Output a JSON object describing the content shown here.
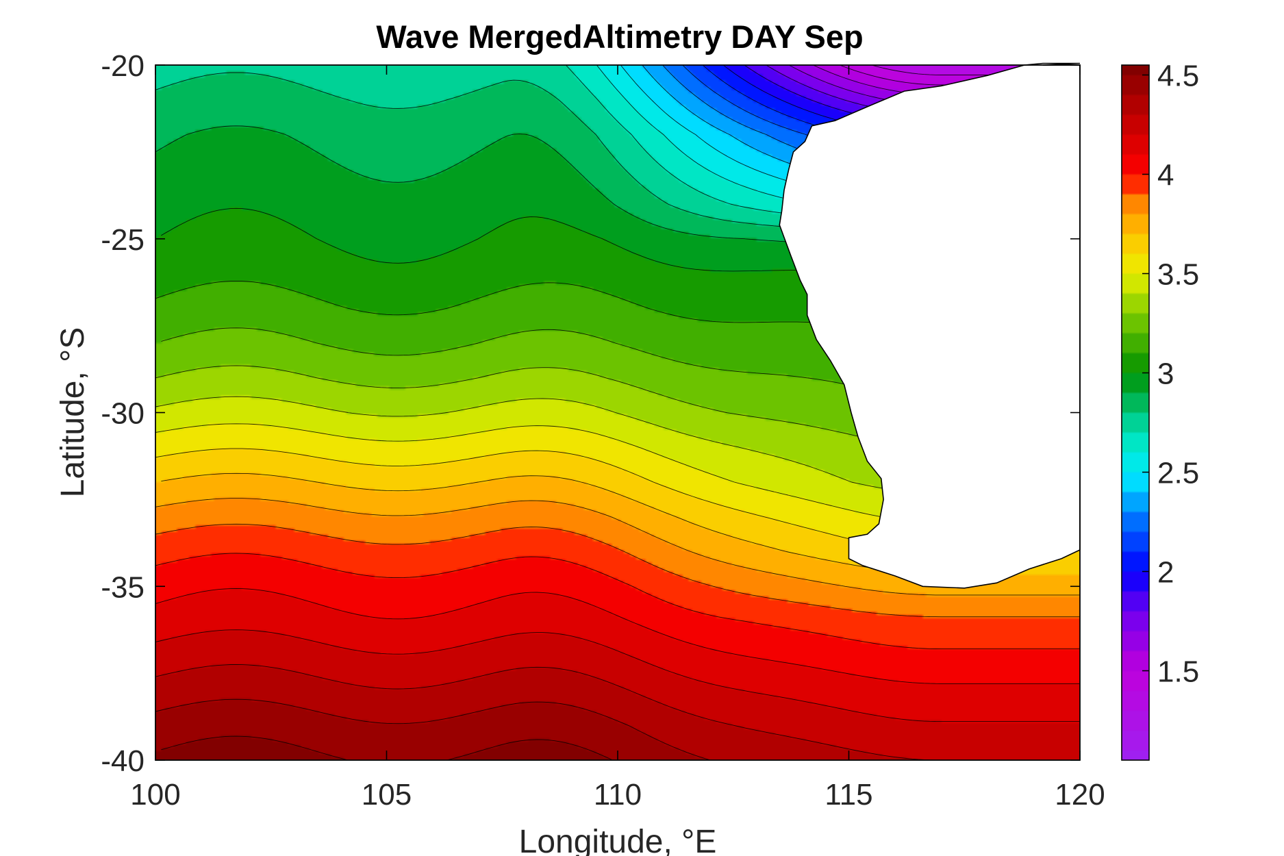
{
  "chart_data": {
    "type": "heatmap",
    "subtype": "filled-contour-map",
    "title": "Wave MergedAltimetry DAY Sep",
    "xlabel": "Longitude, °E",
    "ylabel": "Latitude, °S",
    "xlim": [
      100,
      120
    ],
    "ylim": [
      -40,
      -20
    ],
    "xticks": [
      100,
      105,
      110,
      115,
      120
    ],
    "yticks": [
      -20,
      -25,
      -30,
      -35,
      -40
    ],
    "colorbar": {
      "colormap": "jet-like (purple to dark red)",
      "clim": [
        1.05,
        4.55
      ],
      "ticks": [
        1.5,
        2,
        2.5,
        3,
        3.5,
        4,
        4.5
      ]
    },
    "contour_step": 0.1,
    "offshore_profile": {
      "latitude": [
        -20,
        -21,
        -22,
        -23,
        -24,
        -25,
        -26,
        -27,
        -28,
        -29,
        -30,
        -31,
        -32,
        -33,
        -34,
        -35,
        -36,
        -37,
        -38,
        -39,
        -40
      ],
      "value_at_lon_100": [
        2.75,
        2.82,
        2.88,
        2.92,
        2.96,
        3.0,
        3.05,
        3.12,
        3.2,
        3.3,
        3.42,
        3.56,
        3.7,
        3.84,
        3.96,
        4.06,
        4.14,
        4.24,
        4.34,
        4.44,
        4.52
      ]
    },
    "land_mask": "Western Australia coastline (land shown in white)"
  },
  "colors": {
    "land": "#ffffff",
    "contour_line": "#000000",
    "frame": "#000000"
  }
}
